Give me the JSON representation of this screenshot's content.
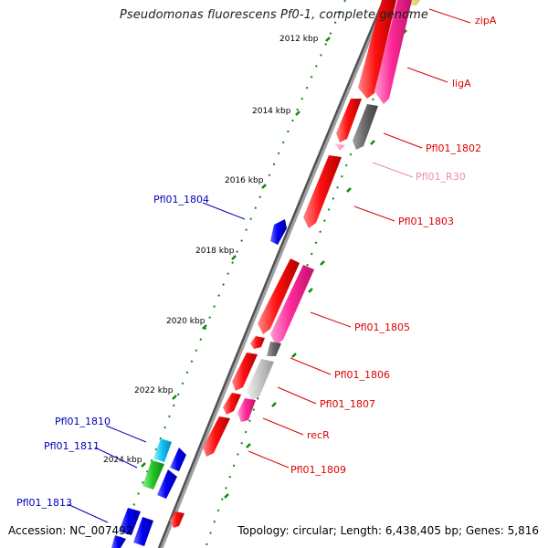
{
  "title": "Pseudomonas fluorescens Pf0-1, complete genome",
  "footer": {
    "accession": "Accession: NC_007492",
    "topology": "Topology: circular; Length: 6,438,405 bp; Genes: 5,816"
  },
  "colors": {
    "backbone": "#808080",
    "tick": "#008000",
    "label_red": "#dd0000",
    "label_pink": "#ee88bb",
    "label_blue": "#0000bb",
    "gene_red": "#ff0000",
    "gene_pink": "#ff1493",
    "gene_dgray": "#666666",
    "gene_lgray": "#c0c0c0",
    "gene_blue": "#0000ee",
    "gene_cyan": "#00bbee",
    "gene_green": "#22bb22",
    "gene_yellow": "#eedd77",
    "gene_lpink": "#ff99cc"
  },
  "kbp_labels": [
    "2012 kbp",
    "2014 kbp",
    "2016 kbp",
    "2018 kbp",
    "2020 kbp",
    "2022 kbp",
    "2024 kbp"
  ],
  "gene_labels": {
    "zipA": "zipA",
    "ligA": "ligA",
    "pfl_1802": "Pfl01_1802",
    "pfl_r30": "Pfl01_R30",
    "pfl_1803": "Pfl01_1803",
    "pfl_1804": "Pfl01_1804",
    "pfl_1805": "Pfl01_1805",
    "pfl_1806": "Pfl01_1806",
    "pfl_1807": "Pfl01_1807",
    "recR": "recR",
    "pfl_1809": "Pfl01_1809",
    "pfl_1810": "Pfl01_1810",
    "pfl_1811": "Pfl01_1811",
    "pfl_1813": "Pfl01_1813"
  }
}
